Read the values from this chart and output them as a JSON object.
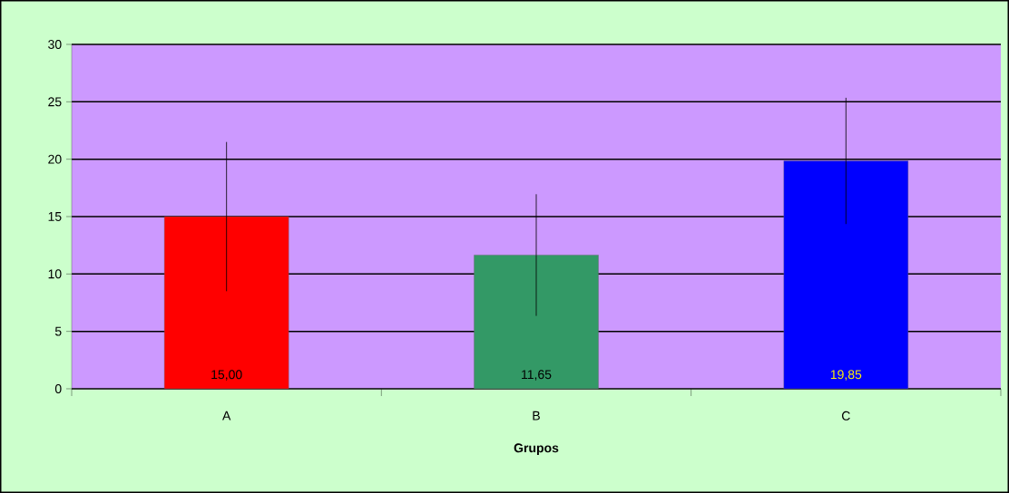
{
  "chart_data": {
    "type": "bar",
    "xlabel": "Grupos",
    "categories": [
      "A",
      "B",
      "C"
    ],
    "values": [
      15.0,
      11.65,
      19.85
    ],
    "colors": [
      "#ff0000",
      "#339966",
      "#0000ff"
    ],
    "errors": [
      6.5,
      5.3,
      5.5
    ],
    "value_labels": [
      "15,00",
      "11,65",
      "19,85"
    ],
    "ylim": [
      0,
      30
    ],
    "yticks": [
      0,
      5,
      10,
      15,
      20,
      25,
      30
    ],
    "grid": "y"
  }
}
